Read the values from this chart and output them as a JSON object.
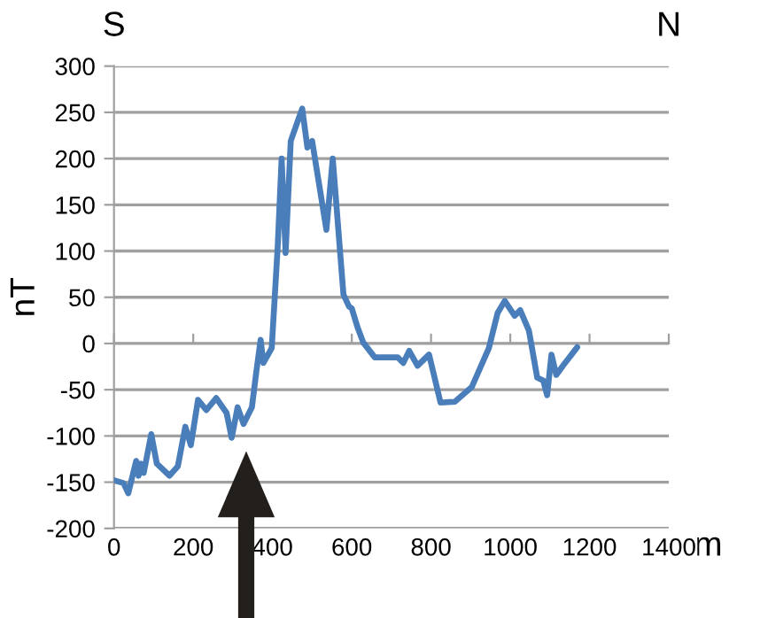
{
  "chart_data": {
    "type": "line",
    "xlabel": "m",
    "ylabel": "nT",
    "annotations": [
      "S",
      "N"
    ],
    "xlim": [
      0,
      1400
    ],
    "xticks": [
      0,
      200,
      400,
      600,
      800,
      1000,
      1200,
      1400
    ],
    "ylim": [
      -200,
      300
    ],
    "yticks": [
      -200,
      -150,
      -100,
      -50,
      0,
      50,
      100,
      150,
      200,
      250,
      300
    ],
    "grid": "y",
    "marker": "none",
    "line_style": "solid",
    "series": [
      {
        "color": "#4a7ebb",
        "x": [
          0,
          24,
          36,
          56,
          62,
          68,
          75,
          94,
          108,
          140,
          161,
          180,
          194,
          212,
          233,
          258,
          284,
          297,
          312,
          327,
          348,
          359,
          370,
          377,
          398,
          413,
          423,
          433,
          446,
          464,
          475,
          488,
          500,
          536,
          552,
          579,
          593,
          600,
          615,
          629,
          658,
          716,
          730,
          745,
          766,
          795,
          824,
          860,
          903,
          946,
          968,
          986,
          1011,
          1025,
          1047,
          1068,
          1083,
          1093,
          1104,
          1116,
          1133,
          1169
        ],
        "values": [
          -148,
          -151,
          -162,
          -127,
          -143,
          -130,
          -140,
          -98,
          -130,
          -143,
          -133,
          -90,
          -110,
          -61,
          -72,
          -59,
          -75,
          -102,
          -69,
          -87,
          -69,
          -31,
          4,
          -21,
          -5,
          104,
          200,
          98,
          219,
          241,
          254,
          212,
          219,
          123,
          200,
          53,
          40,
          38,
          17,
          1,
          -15,
          -15,
          -21,
          -8,
          -24,
          -12,
          -64,
          -63,
          -47,
          -5,
          33,
          46,
          30,
          36,
          14,
          -37,
          -40,
          -56,
          -12,
          -34,
          -24,
          -4
        ]
      }
    ]
  }
}
